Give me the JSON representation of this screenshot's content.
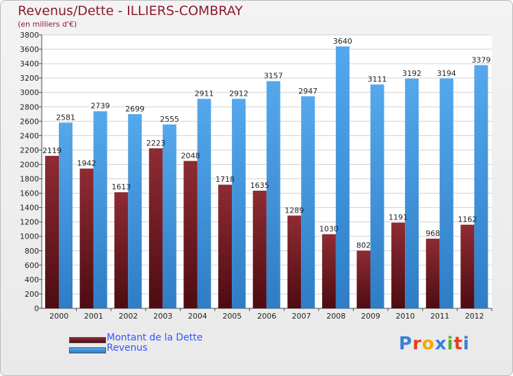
{
  "title": "Revenus/Dette - ILLIERS-COMBRAY",
  "subtitle": "(en milliers d'€)",
  "colors": {
    "dette": "#6b1420",
    "revenus": "#3f95dc",
    "title": "#8b1a2e",
    "legend_text": "#3355ff"
  },
  "legend": [
    {
      "label": "Montant de la Dette",
      "color": "#6b1420"
    },
    {
      "label": "Revenus",
      "color": "#3f95dc"
    }
  ],
  "logo": {
    "letters": [
      "P",
      "r",
      "o",
      "x",
      "i",
      "t",
      "i"
    ],
    "colors": [
      "#3a7fd5",
      "#e8401c",
      "#f6a800",
      "#3a7fd5",
      "#58b030",
      "#e8401c",
      "#3a7fd5"
    ]
  },
  "chart_data": {
    "type": "bar",
    "categories": [
      "2000",
      "2001",
      "2002",
      "2003",
      "2004",
      "2005",
      "2006",
      "2007",
      "2008",
      "2009",
      "2010",
      "2011",
      "2012"
    ],
    "series": [
      {
        "name": "Montant de la Dette",
        "values": [
          2119,
          1942,
          1613,
          2223,
          2048,
          1718,
          1635,
          1289,
          1030,
          802,
          1191,
          968,
          1162
        ],
        "labels": [
          "2119",
          "1942",
          "1613",
          "2223",
          "2048",
          "1718",
          "1635",
          "1289",
          "1030",
          "802",
          "1191",
          "968",
          "1162"
        ]
      },
      {
        "name": "Revenus",
        "values": [
          2581,
          2739,
          2699,
          2555,
          2911,
          2912,
          3157,
          2947,
          3640,
          3111,
          3192,
          3194,
          3379
        ],
        "labels": [
          "2581",
          "2739",
          "2699",
          "2555",
          "2911",
          "2912",
          "3157",
          "2947",
          "3640",
          "3111",
          "3192",
          "3194",
          "3379"
        ]
      }
    ],
    "yticks": [
      "0",
      "200",
      "400",
      "600",
      "800",
      "1000",
      "1200",
      "1400",
      "1600",
      "1800",
      "2000",
      "2200",
      "2400",
      "2600",
      "2800",
      "3000",
      "3200",
      "3400",
      "3600",
      "3800"
    ],
    "ylim": [
      0,
      3800
    ],
    "grid": true,
    "legend_position": "bottom-left"
  }
}
